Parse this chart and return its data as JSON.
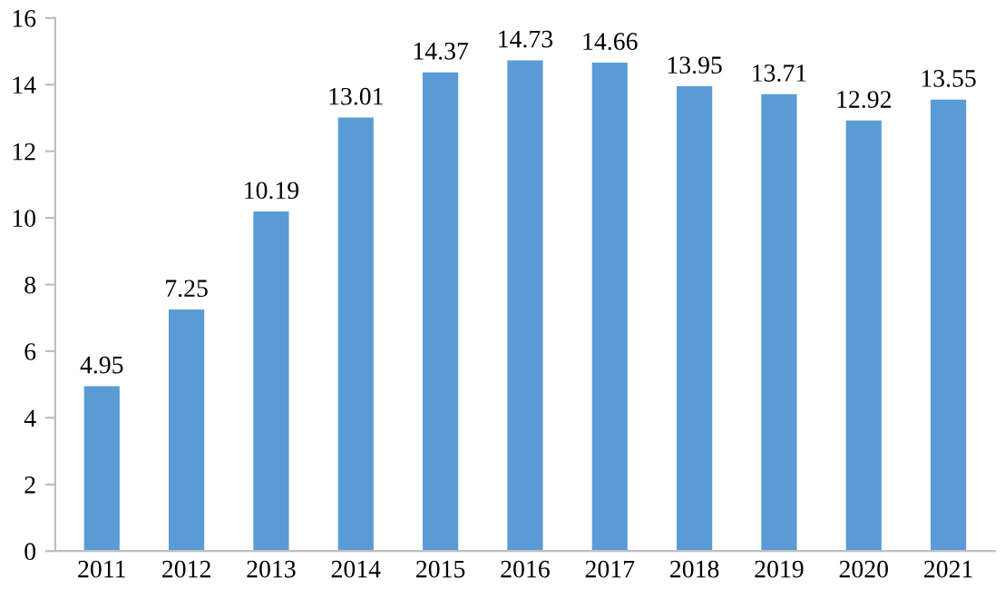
{
  "chart_data": {
    "type": "bar",
    "categories": [
      "2011",
      "2012",
      "2013",
      "2014",
      "2015",
      "2016",
      "2017",
      "2018",
      "2019",
      "2020",
      "2021"
    ],
    "values": [
      4.95,
      7.25,
      10.19,
      13.01,
      14.37,
      14.73,
      14.66,
      13.95,
      13.71,
      12.92,
      13.55
    ],
    "color": "#5b9bd5",
    "ylim": [
      0,
      16
    ],
    "yticks": [
      0,
      2,
      4,
      6,
      8,
      10,
      12,
      14,
      16
    ],
    "grid": false,
    "data_labels": true
  }
}
